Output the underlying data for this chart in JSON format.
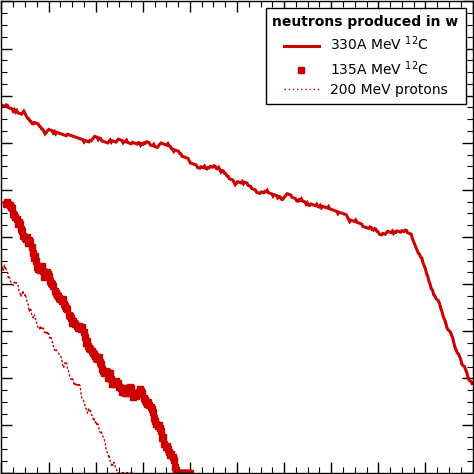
{
  "legend_title": "neutrons produced in w",
  "line1_label": "330A MeV $^{12}$C",
  "line2_label": "135A MeV $^{12}$C",
  "line3_label": "200 MeV protons",
  "color": "#cc0000",
  "background_color": "#ffffff",
  "xlim": [
    0,
    1.0
  ],
  "ylim": [
    0,
    1.0
  ],
  "spine_color": "black",
  "line1_x_start": 0.0,
  "line1_x_end": 1.0,
  "line1_y_start": 0.78,
  "line1_y_end": 0.15,
  "line1_sharp_drop_x": 0.87,
  "line1_sharp_drop_y": 0.47,
  "line2_x_start": 0.01,
  "line2_x_end": 0.4,
  "line2_y_start": 0.57,
  "line2_y_end": 0.02,
  "line3_x_start": 0.0,
  "line3_x_end": 0.28,
  "line3_y_start": 0.44,
  "line3_y_end": 0.02
}
